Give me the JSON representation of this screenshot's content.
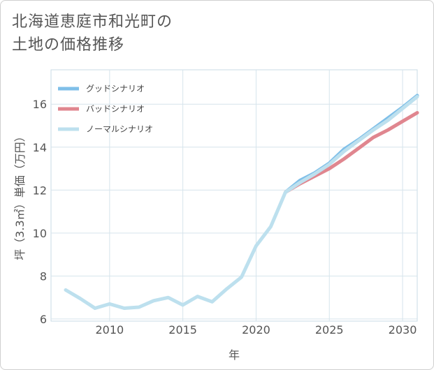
{
  "title_lines": [
    "北海道恵庭市和光町の",
    "土地の価格推移"
  ],
  "chart_data": {
    "type": "line",
    "title": "北海道恵庭市和光町の土地の価格推移",
    "xlabel": "年",
    "ylabel": "坪（3.3㎡）単価（万円）",
    "xlim": [
      2006,
      2031
    ],
    "ylim": [
      5.9,
      17.6
    ],
    "xticks": [
      2010,
      2015,
      2020,
      2025,
      2030
    ],
    "yticks": [
      6,
      8,
      10,
      12,
      14,
      16
    ],
    "grid": true,
    "legend_position": "top-left",
    "series": [
      {
        "name": "グッドシナリオ",
        "color": "#7fbfe8",
        "x": [
          2022,
          2023,
          2024,
          2025,
          2026,
          2027,
          2028,
          2029,
          2030,
          2031
        ],
        "values": [
          11.9,
          12.45,
          12.8,
          13.25,
          13.9,
          14.35,
          14.85,
          15.35,
          15.85,
          16.4
        ]
      },
      {
        "name": "バッドシナリオ",
        "color": "#e0868f",
        "x": [
          2022,
          2023,
          2024,
          2025,
          2026,
          2027,
          2028,
          2029,
          2030,
          2031
        ],
        "values": [
          11.9,
          12.3,
          12.65,
          13.0,
          13.45,
          13.95,
          14.45,
          14.8,
          15.2,
          15.6
        ]
      },
      {
        "name": "ノーマルシナリオ",
        "color": "#bde0ee",
        "x": [
          2007,
          2008,
          2009,
          2010,
          2011,
          2012,
          2013,
          2014,
          2015,
          2016,
          2017,
          2018,
          2019,
          2020,
          2021,
          2022,
          2023,
          2024,
          2025,
          2026,
          2027,
          2028,
          2029,
          2030,
          2031
        ],
        "values": [
          7.35,
          6.95,
          6.5,
          6.7,
          6.5,
          6.55,
          6.85,
          7.0,
          6.65,
          7.05,
          6.8,
          7.4,
          7.95,
          9.4,
          10.3,
          11.9,
          12.35,
          12.75,
          13.2,
          13.8,
          14.3,
          14.8,
          15.25,
          15.8,
          16.35
        ]
      }
    ]
  }
}
